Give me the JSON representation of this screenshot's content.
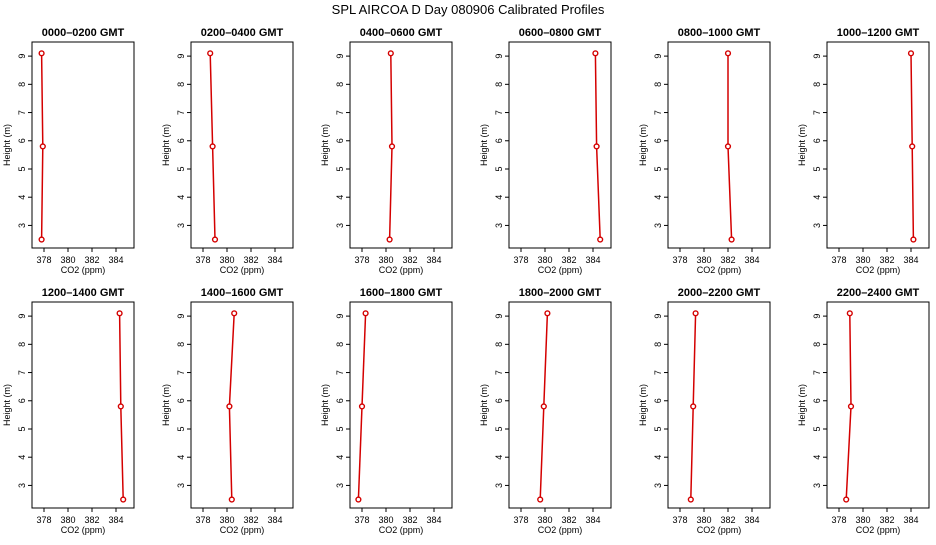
{
  "figure": {
    "title": "SPL AIRCOA D  Day 080906  Calibrated Profiles"
  },
  "chart_data": [
    {
      "type": "line",
      "title": "0000–0200 GMT",
      "xlabel": "CO2 (ppm)",
      "ylabel": "Height (m)",
      "xlim": [
        377,
        385.5
      ],
      "ylim": [
        2.2,
        9.5
      ],
      "x_ticks": [
        378,
        380,
        382,
        384
      ],
      "y_ticks": [
        3,
        4,
        5,
        6,
        7,
        8,
        9
      ],
      "grid": false,
      "x": [
        377.8,
        377.9,
        377.8
      ],
      "y": [
        2.5,
        5.8,
        9.1
      ]
    },
    {
      "type": "line",
      "title": "0200–0400 GMT",
      "xlabel": "CO2 (ppm)",
      "ylabel": "Height (m)",
      "xlim": [
        377,
        385.5
      ],
      "ylim": [
        2.2,
        9.5
      ],
      "x_ticks": [
        378,
        380,
        382,
        384
      ],
      "y_ticks": [
        3,
        4,
        5,
        6,
        7,
        8,
        9
      ],
      "grid": false,
      "x": [
        379.0,
        378.8,
        378.6
      ],
      "y": [
        2.5,
        5.8,
        9.1
      ]
    },
    {
      "type": "line",
      "title": "0400–0600 GMT",
      "xlabel": "CO2 (ppm)",
      "ylabel": "Height (m)",
      "xlim": [
        377,
        385.5
      ],
      "ylim": [
        2.2,
        9.5
      ],
      "x_ticks": [
        378,
        380,
        382,
        384
      ],
      "y_ticks": [
        3,
        4,
        5,
        6,
        7,
        8,
        9
      ],
      "grid": false,
      "x": [
        380.3,
        380.5,
        380.4
      ],
      "y": [
        2.5,
        5.8,
        9.1
      ]
    },
    {
      "type": "line",
      "title": "0600–0800 GMT",
      "xlabel": "CO2 (ppm)",
      "ylabel": "Height (m)",
      "xlim": [
        377,
        385.5
      ],
      "ylim": [
        2.2,
        9.5
      ],
      "x_ticks": [
        378,
        380,
        382,
        384
      ],
      "y_ticks": [
        3,
        4,
        5,
        6,
        7,
        8,
        9
      ],
      "grid": false,
      "x": [
        384.6,
        384.3,
        384.2
      ],
      "y": [
        2.5,
        5.8,
        9.1
      ]
    },
    {
      "type": "line",
      "title": "0800–1000 GMT",
      "xlabel": "CO2 (ppm)",
      "ylabel": "Height (m)",
      "xlim": [
        377,
        385.5
      ],
      "ylim": [
        2.2,
        9.5
      ],
      "x_ticks": [
        378,
        380,
        382,
        384
      ],
      "y_ticks": [
        3,
        4,
        5,
        6,
        7,
        8,
        9
      ],
      "grid": false,
      "x": [
        382.3,
        382.0,
        382.0
      ],
      "y": [
        2.5,
        5.8,
        9.1
      ]
    },
    {
      "type": "line",
      "title": "1000–1200 GMT",
      "xlabel": "CO2 (ppm)",
      "ylabel": "Height (m)",
      "xlim": [
        377,
        385.5
      ],
      "ylim": [
        2.2,
        9.5
      ],
      "x_ticks": [
        378,
        380,
        382,
        384
      ],
      "y_ticks": [
        3,
        4,
        5,
        6,
        7,
        8,
        9
      ],
      "grid": false,
      "x": [
        384.2,
        384.1,
        384.0
      ],
      "y": [
        2.5,
        5.8,
        9.1
      ]
    },
    {
      "type": "line",
      "title": "1200–1400 GMT",
      "xlabel": "CO2 (ppm)",
      "ylabel": "Height (m)",
      "xlim": [
        377,
        385.5
      ],
      "ylim": [
        2.2,
        9.5
      ],
      "x_ticks": [
        378,
        380,
        382,
        384
      ],
      "y_ticks": [
        3,
        4,
        5,
        6,
        7,
        8,
        9
      ],
      "grid": false,
      "x": [
        384.6,
        384.4,
        384.3
      ],
      "y": [
        2.5,
        5.8,
        9.1
      ]
    },
    {
      "type": "line",
      "title": "1400–1600 GMT",
      "xlabel": "CO2 (ppm)",
      "ylabel": "Height (m)",
      "xlim": [
        377,
        385.5
      ],
      "ylim": [
        2.2,
        9.5
      ],
      "x_ticks": [
        378,
        380,
        382,
        384
      ],
      "y_ticks": [
        3,
        4,
        5,
        6,
        7,
        8,
        9
      ],
      "grid": false,
      "x": [
        380.4,
        380.2,
        380.6
      ],
      "y": [
        2.5,
        5.8,
        9.1
      ]
    },
    {
      "type": "line",
      "title": "1600–1800 GMT",
      "xlabel": "CO2 (ppm)",
      "ylabel": "Height (m)",
      "xlim": [
        377,
        385.5
      ],
      "ylim": [
        2.2,
        9.5
      ],
      "x_ticks": [
        378,
        380,
        382,
        384
      ],
      "y_ticks": [
        3,
        4,
        5,
        6,
        7,
        8,
        9
      ],
      "grid": false,
      "x": [
        377.7,
        378.0,
        378.3
      ],
      "y": [
        2.5,
        5.8,
        9.1
      ]
    },
    {
      "type": "line",
      "title": "1800–2000 GMT",
      "xlabel": "CO2 (ppm)",
      "ylabel": "Height (m)",
      "xlim": [
        377,
        385.5
      ],
      "ylim": [
        2.2,
        9.5
      ],
      "x_ticks": [
        378,
        380,
        382,
        384
      ],
      "y_ticks": [
        3,
        4,
        5,
        6,
        7,
        8,
        9
      ],
      "grid": false,
      "x": [
        379.6,
        379.9,
        380.2
      ],
      "y": [
        2.5,
        5.8,
        9.1
      ]
    },
    {
      "type": "line",
      "title": "2000–2200 GMT",
      "xlabel": "CO2 (ppm)",
      "ylabel": "Height (m)",
      "xlim": [
        377,
        385.5
      ],
      "ylim": [
        2.2,
        9.5
      ],
      "x_ticks": [
        378,
        380,
        382,
        384
      ],
      "y_ticks": [
        3,
        4,
        5,
        6,
        7,
        8,
        9
      ],
      "grid": false,
      "x": [
        378.9,
        379.1,
        379.3
      ],
      "y": [
        2.5,
        5.8,
        9.1
      ]
    },
    {
      "type": "line",
      "title": "2200–2400 GMT",
      "xlabel": "CO2 (ppm)",
      "ylabel": "Height (m)",
      "xlim": [
        377,
        385.5
      ],
      "ylim": [
        2.2,
        9.5
      ],
      "x_ticks": [
        378,
        380,
        382,
        384
      ],
      "y_ticks": [
        3,
        4,
        5,
        6,
        7,
        8,
        9
      ],
      "grid": false,
      "x": [
        378.6,
        379.0,
        378.9
      ],
      "y": [
        2.5,
        5.8,
        9.1
      ]
    }
  ],
  "colors": {
    "series": "#d40000",
    "axis": "#000000"
  }
}
